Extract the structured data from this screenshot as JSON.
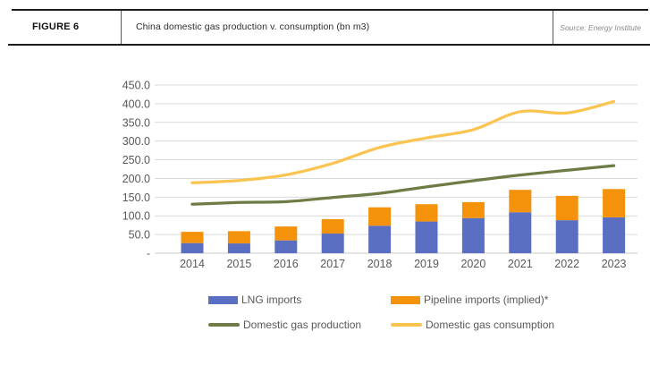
{
  "figure": {
    "label": "FIGURE 6",
    "title": "China domestic gas production v. consumption (bn m3)",
    "source": "Source: Energy Institute"
  },
  "colors": {
    "lng_blue": "#5B6FC2",
    "pipeline_orange": "#F5920B",
    "production_olive": "#6F7B45",
    "consumption_yellow": "#FBC450",
    "gridline": "#D9D9D9",
    "axis_text": "#595959",
    "header_rule": "#1C1C1C"
  },
  "chart_data": {
    "type": "bar",
    "subtype": "stacked-bar-with-lines",
    "title": "China domestic gas production v. consumption (bn m3)",
    "xlabel": "",
    "ylabel": "",
    "ylim": [
      0,
      450
    ],
    "y_tick_step": 50,
    "y_tick_labels": [
      "-",
      "50.0",
      "100.0",
      "150.0",
      "200.0",
      "250.0",
      "300.0",
      "350.0",
      "400.0",
      "450.0"
    ],
    "grid": true,
    "legend_position": "bottom",
    "categories": [
      "2014",
      "2015",
      "2016",
      "2017",
      "2018",
      "2019",
      "2020",
      "2021",
      "2022",
      "2023"
    ],
    "series": [
      {
        "name": "LNG imports",
        "type": "bar",
        "stack": "imports",
        "color": "#5B6FC2",
        "values": [
          27.1,
          26.2,
          34.3,
          52.6,
          73.5,
          84.8,
          94.0,
          109.5,
          88.3,
          95.9
        ]
      },
      {
        "name": "Pipeline imports (implied)*",
        "type": "bar",
        "stack": "imports",
        "color": "#F5920B",
        "values": [
          30.1,
          32.8,
          37.2,
          38.6,
          49.3,
          46.3,
          42.6,
          60.0,
          65.2,
          75.7
        ]
      },
      {
        "name": "Domestic gas production",
        "type": "line",
        "color": "#6F7B45",
        "values": [
          131.2,
          135.7,
          137.9,
          149.2,
          160.2,
          177.3,
          194.0,
          209.2,
          221.8,
          234.3
        ]
      },
      {
        "name": "Domestic gas consumption",
        "type": "line",
        "color": "#FBC450",
        "values": [
          188.4,
          194.7,
          209.4,
          240.4,
          283.0,
          308.4,
          330.6,
          378.7,
          375.3,
          405.9
        ]
      }
    ]
  }
}
